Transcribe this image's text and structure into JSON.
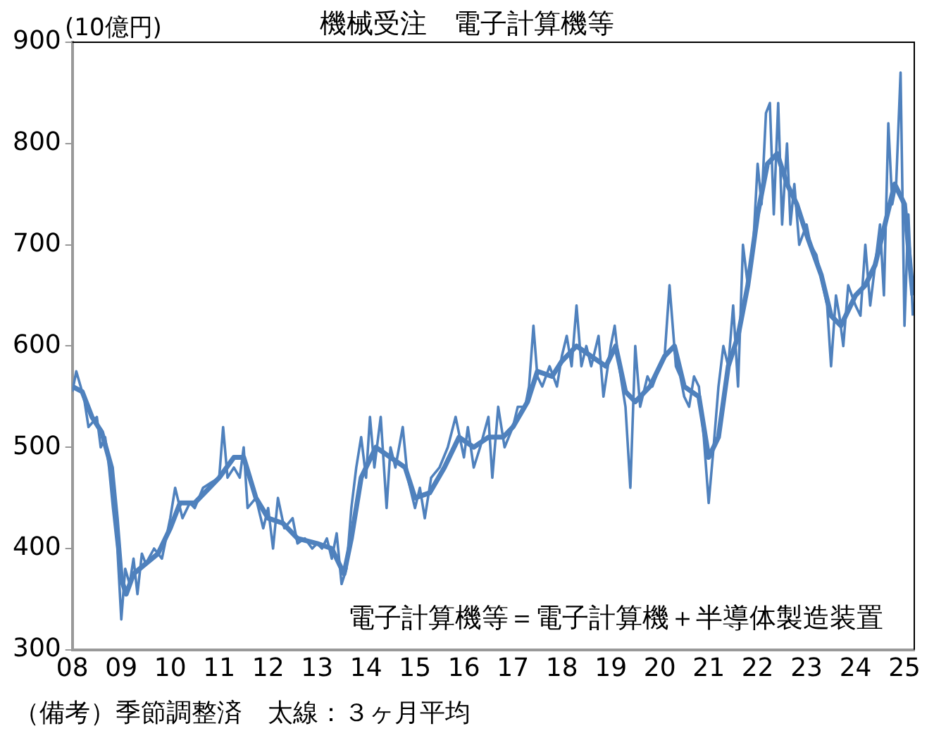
{
  "chart_data": {
    "type": "line",
    "title": "機械受注　電子計算機等",
    "ylabel": "(10億円)",
    "xlim": [
      2008,
      2025.2
    ],
    "xticks": [
      {
        "value": 2008,
        "label": "08"
      },
      {
        "value": 2009,
        "label": "09"
      },
      {
        "value": 2010,
        "label": "10"
      },
      {
        "value": 2011,
        "label": "11"
      },
      {
        "value": 2012,
        "label": "12"
      },
      {
        "value": 2013,
        "label": "13"
      },
      {
        "value": 2014,
        "label": "14"
      },
      {
        "value": 2015,
        "label": "15"
      },
      {
        "value": 2016,
        "label": "16"
      },
      {
        "value": 2017,
        "label": "17"
      },
      {
        "value": 2018,
        "label": "18"
      },
      {
        "value": 2019,
        "label": "19"
      },
      {
        "value": 2020,
        "label": "20"
      },
      {
        "value": 2021,
        "label": "21"
      },
      {
        "value": 2022,
        "label": "22"
      },
      {
        "value": 2023,
        "label": "23"
      },
      {
        "value": 2024,
        "label": "24"
      },
      {
        "value": 2025,
        "label": "25"
      }
    ],
    "ylim": [
      300,
      900
    ],
    "yticks": [
      300,
      400,
      500,
      600,
      700,
      800,
      900
    ],
    "grid": false,
    "legend": false,
    "marker": "none",
    "line_style": "solid",
    "series": [
      {
        "color": "#4f81bd",
        "x": [
          2008.0,
          2008.08,
          2008.17,
          2008.25,
          2008.33,
          2008.42,
          2008.5,
          2008.58,
          2008.67,
          2008.75,
          2008.83,
          2008.92,
          2009.0,
          2009.08,
          2009.17,
          2009.25,
          2009.33,
          2009.42,
          2009.5,
          2009.67,
          2009.83,
          2010.0,
          2010.1,
          2010.25,
          2010.4,
          2010.5,
          2010.67,
          2010.83,
          2011.0,
          2011.08,
          2011.17,
          2011.3,
          2011.42,
          2011.5,
          2011.58,
          2011.75,
          2011.9,
          2012.0,
          2012.1,
          2012.2,
          2012.33,
          2012.5,
          2012.6,
          2012.75,
          2012.9,
          2013.0,
          2013.1,
          2013.2,
          2013.3,
          2013.4,
          2013.5,
          2013.6,
          2013.7,
          2013.8,
          2013.9,
          2014.0,
          2014.08,
          2014.17,
          2014.3,
          2014.42,
          2014.5,
          2014.6,
          2014.75,
          2014.85,
          2015.0,
          2015.1,
          2015.2,
          2015.33,
          2015.5,
          2015.67,
          2015.83,
          2016.0,
          2016.08,
          2016.2,
          2016.33,
          2016.5,
          2016.58,
          2016.7,
          2016.83,
          2017.0,
          2017.1,
          2017.25,
          2017.33,
          2017.42,
          2017.5,
          2017.6,
          2017.75,
          2017.9,
          2018.0,
          2018.1,
          2018.2,
          2018.3,
          2018.4,
          2018.5,
          2018.6,
          2018.75,
          2018.85,
          2019.0,
          2019.08,
          2019.17,
          2019.3,
          2019.4,
          2019.5,
          2019.6,
          2019.75,
          2019.85,
          2020.0,
          2020.1,
          2020.2,
          2020.33,
          2020.42,
          2020.5,
          2020.6,
          2020.7,
          2020.8,
          2020.9,
          2021.0,
          2021.1,
          2021.2,
          2021.3,
          2021.4,
          2021.5,
          2021.6,
          2021.7,
          2021.8,
          2021.9,
          2022.0,
          2022.08,
          2022.17,
          2022.25,
          2022.33,
          2022.42,
          2022.5,
          2022.6,
          2022.67,
          2022.75,
          2022.85,
          2023.0,
          2023.08,
          2023.2,
          2023.33,
          2023.42,
          2023.5,
          2023.6,
          2023.67,
          2023.75,
          2023.85,
          2024.0,
          2024.1,
          2024.2,
          2024.3,
          2024.4,
          2024.5,
          2024.58,
          2024.67,
          2024.75,
          2024.83,
          2024.92,
          2025.0,
          2025.08,
          2025.17
        ],
        "values": [
          555,
          575,
          560,
          545,
          520,
          525,
          530,
          500,
          510,
          480,
          440,
          400,
          330,
          380,
          365,
          390,
          355,
          395,
          385,
          400,
          390,
          430,
          460,
          430,
          445,
          440,
          460,
          465,
          470,
          520,
          470,
          480,
          470,
          500,
          440,
          450,
          420,
          440,
          400,
          450,
          420,
          430,
          405,
          410,
          400,
          405,
          400,
          410,
          390,
          415,
          365,
          380,
          440,
          480,
          510,
          470,
          530,
          480,
          530,
          440,
          500,
          480,
          520,
          470,
          440,
          460,
          430,
          470,
          480,
          500,
          530,
          490,
          520,
          480,
          500,
          530,
          470,
          540,
          500,
          520,
          540,
          540,
          560,
          620,
          570,
          560,
          580,
          560,
          590,
          610,
          580,
          640,
          580,
          600,
          580,
          610,
          550,
          600,
          620,
          580,
          540,
          460,
          600,
          540,
          570,
          560,
          580,
          590,
          660,
          580,
          570,
          550,
          540,
          570,
          560,
          510,
          445,
          500,
          560,
          600,
          580,
          640,
          560,
          700,
          660,
          690,
          780,
          740,
          830,
          840,
          730,
          840,
          720,
          800,
          720,
          760,
          700,
          720,
          700,
          690,
          660,
          640,
          580,
          650,
          630,
          600,
          660,
          640,
          630,
          700,
          640,
          680,
          720,
          650,
          820,
          740,
          760,
          870,
          620,
          730,
          630
        ]
      },
      {
        "color": "#4f81bd",
        "x": [
          2008.0,
          2008.2,
          2008.4,
          2008.6,
          2008.8,
          2008.9,
          2009.0,
          2009.1,
          2009.25,
          2009.5,
          2009.75,
          2010.0,
          2010.2,
          2010.5,
          2010.8,
          2011.0,
          2011.3,
          2011.5,
          2011.75,
          2012.0,
          2012.3,
          2012.6,
          2013.0,
          2013.3,
          2013.55,
          2013.7,
          2013.9,
          2014.2,
          2014.5,
          2014.8,
          2015.0,
          2015.3,
          2015.6,
          2015.9,
          2016.2,
          2016.5,
          2016.8,
          2017.0,
          2017.3,
          2017.5,
          2017.8,
          2018.0,
          2018.3,
          2018.6,
          2018.9,
          2019.1,
          2019.3,
          2019.5,
          2019.8,
          2020.1,
          2020.3,
          2020.5,
          2020.8,
          2021.0,
          2021.2,
          2021.4,
          2021.6,
          2021.8,
          2022.0,
          2022.2,
          2022.4,
          2022.6,
          2022.8,
          2023.0,
          2023.3,
          2023.5,
          2023.7,
          2024.0,
          2024.2,
          2024.4,
          2024.6,
          2024.8,
          2025.0,
          2025.17
        ],
        "values": [
          560,
          555,
          530,
          515,
          480,
          430,
          370,
          355,
          375,
          385,
          395,
          420,
          445,
          445,
          460,
          470,
          490,
          490,
          450,
          430,
          425,
          410,
          405,
          400,
          375,
          410,
          470,
          500,
          490,
          480,
          450,
          455,
          480,
          510,
          500,
          510,
          510,
          520,
          545,
          575,
          570,
          585,
          600,
          590,
          580,
          600,
          555,
          545,
          560,
          590,
          600,
          560,
          550,
          490,
          510,
          580,
          610,
          660,
          730,
          780,
          790,
          760,
          740,
          710,
          670,
          630,
          620,
          650,
          660,
          680,
          720,
          760,
          740,
          650
        ]
      }
    ],
    "annotations": [
      "電子計算機等＝電子計算機＋半導体製造装置",
      "（備考）季節調整済　太線：３ヶ月平均"
    ]
  }
}
